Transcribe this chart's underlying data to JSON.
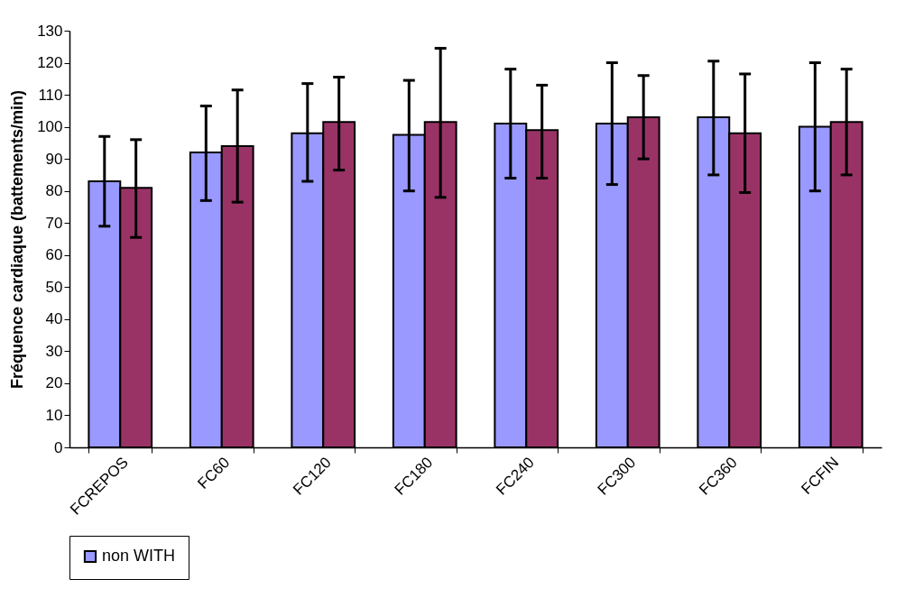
{
  "chart_data": {
    "type": "bar",
    "ylabel": "Fréquence cardiaque (battements/min)",
    "categories": [
      "FCREPOS",
      "FC60",
      "FC120",
      "FC180",
      "FC240",
      "FC300",
      "FC360",
      "FCFIN"
    ],
    "series": [
      {
        "name": "non WITH",
        "color": "#9999ff",
        "values": [
          83,
          92,
          98,
          97.5,
          101,
          101,
          103,
          100
        ],
        "errors": [
          [
            69,
            97
          ],
          [
            77,
            106.5
          ],
          [
            83,
            113.5
          ],
          [
            80,
            114.5
          ],
          [
            84,
            118
          ],
          [
            82,
            120
          ],
          [
            85,
            120.5
          ],
          [
            80,
            120
          ]
        ]
      },
      {
        "color": "#993366",
        "values": [
          81,
          94,
          101.5,
          101.5,
          99,
          103,
          98,
          101.5
        ],
        "errors": [
          [
            65.5,
            96
          ],
          [
            76.5,
            111.5
          ],
          [
            86.5,
            115.5
          ],
          [
            78,
            124.5
          ],
          [
            84,
            113
          ],
          [
            90,
            116
          ],
          [
            79.5,
            116.5
          ],
          [
            85,
            118
          ]
        ]
      }
    ],
    "ylim": [
      0,
      130
    ],
    "yticks": [
      0,
      10,
      20,
      30,
      40,
      50,
      60,
      70,
      80,
      90,
      100,
      110,
      120,
      130
    ],
    "grid": false,
    "legend": "bottom"
  }
}
